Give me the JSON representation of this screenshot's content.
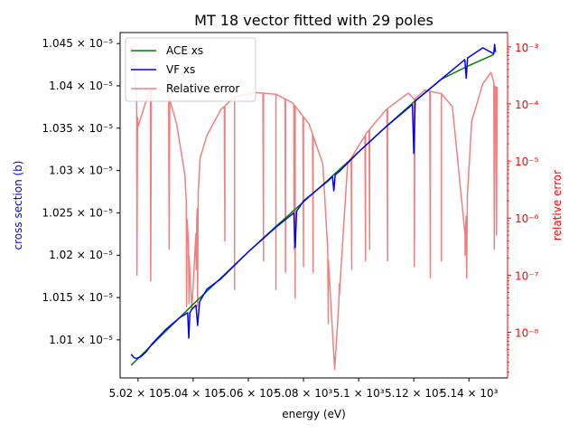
{
  "chart_data": {
    "type": "line",
    "title": "MT 18 vector fitted with 29 poles",
    "xlabel": "energy (eV)",
    "ylabel": "cross section (b)",
    "y2label": "relative error",
    "xlim": [
      5013.5,
      5154
    ],
    "ylim": [
      1.0055e-05,
      1.0463e-05
    ],
    "y2lim_log10": [
      -8.8,
      -2.75
    ],
    "y2scale": "log",
    "grid": false,
    "legend_position": "upper-left",
    "x_ticks": [
      {
        "value": 5020,
        "label": "5.02 × 10³"
      },
      {
        "value": 5040,
        "label": "5.04 × 10³"
      },
      {
        "value": 5060,
        "label": "5.06 × 10³"
      },
      {
        "value": 5080,
        "label": "5.08 × 10³"
      },
      {
        "value": 5100,
        "label": "5.1 × 10³"
      },
      {
        "value": 5120,
        "label": "5.12 × 10³"
      },
      {
        "value": 5140,
        "label": "5.14 × 10³"
      }
    ],
    "y_ticks": [
      {
        "value": 1.01e-05,
        "label": "1.01 × 10⁻⁵"
      },
      {
        "value": 1.015e-05,
        "label": "1.015 × 10⁻⁵"
      },
      {
        "value": 1.02e-05,
        "label": "1.02 × 10⁻⁵"
      },
      {
        "value": 1.025e-05,
        "label": "1.025 × 10⁻⁵"
      },
      {
        "value": 1.03e-05,
        "label": "1.03 × 10⁻⁵"
      },
      {
        "value": 1.035e-05,
        "label": "1.035 × 10⁻⁵"
      },
      {
        "value": 1.04e-05,
        "label": "1.04 × 10⁻⁵"
      },
      {
        "value": 1.045e-05,
        "label": "1.045 × 10⁻⁵"
      }
    ],
    "y2_ticks": [
      {
        "exp": -8,
        "label": "10⁻⁸"
      },
      {
        "exp": -7,
        "label": "10⁻⁷"
      },
      {
        "exp": -6,
        "label": "10⁻⁶"
      },
      {
        "exp": -5,
        "label": "10⁻⁵"
      },
      {
        "exp": -4,
        "label": "10⁻⁴"
      },
      {
        "exp": -3,
        "label": "10⁻³"
      }
    ],
    "series": [
      {
        "name": "ACE xs",
        "color": "#008000",
        "axis": "left",
        "x": [
          5017.5,
          5020,
          5030,
          5040,
          5050,
          5060,
          5070,
          5080,
          5090,
          5100,
          5110,
          5120,
          5130,
          5140,
          5149
        ],
        "y": [
          1.007e-05,
          1.0078e-05,
          1.011e-05,
          1.0142e-05,
          1.0173e-05,
          1.0204e-05,
          1.0234e-05,
          1.0263e-05,
          1.0292e-05,
          1.0322e-05,
          1.0352e-05,
          1.0381e-05,
          1.0408e-05,
          1.0424e-05,
          1.0437e-05
        ]
      },
      {
        "name": "VF xs",
        "color": "#0000ff",
        "axis": "left",
        "x": [
          5017.5,
          5018.5,
          5019.5,
          5021,
          5023,
          5025,
          5030,
          5035,
          5038,
          5038.4,
          5038.8,
          5039.5,
          5041,
          5041.6,
          5042.3,
          5045,
          5050,
          5060,
          5070,
          5076.5,
          5077,
          5077.5,
          5080,
          5089,
          5090.5,
          5091,
          5091.5,
          5093,
          5100,
          5110,
          5119.5,
          5120,
          5120.5,
          5130,
          5138.5,
          5139,
          5139.5,
          5145,
          5149,
          5149.3,
          5149.6
        ],
        "y": [
          1.0083e-05,
          1.0079e-05,
          1.0078e-05,
          1.008e-05,
          1.0086e-05,
          1.0095e-05,
          1.0112e-05,
          1.0126e-05,
          1.0132e-05,
          1.0102e-05,
          1.0132e-05,
          1.0136e-05,
          1.0141e-05,
          1.0117e-05,
          1.0145e-05,
          1.016e-05,
          1.0172e-05,
          1.0204e-05,
          1.0233e-05,
          1.025e-05,
          1.0209e-05,
          1.0252e-05,
          1.0264e-05,
          1.0288e-05,
          1.0293e-05,
          1.0276e-05,
          1.0295e-05,
          1.0299e-05,
          1.0322e-05,
          1.0352e-05,
          1.0378e-05,
          1.032e-05,
          1.0382e-05,
          1.0408e-05,
          1.0431e-05,
          1.0409e-05,
          1.0433e-05,
          1.0445e-05,
          1.0438e-05,
          1.0449e-05,
          1.044e-05
        ]
      },
      {
        "name": "Relative error",
        "color": "#f08080",
        "axis": "right",
        "log10_baseline_x": [
          5017.5,
          5019,
          5020,
          5024,
          5027,
          5031,
          5034,
          5037,
          5039.5,
          5042.5,
          5045,
          5050,
          5055,
          5062,
          5070,
          5076,
          5082,
          5087,
          5091.3,
          5096,
          5103,
          5110,
          5118,
          5120.2,
          5124,
          5130,
          5134,
          5138.6,
          5141,
          5145,
          5148,
          5149.5
        ],
        "log10_baseline_y": [
          -3.0,
          -3.5,
          -4.4,
          -3.78,
          -3.72,
          -3.84,
          -4.35,
          -5.25,
          -7.6,
          -4.95,
          -4.55,
          -4.1,
          -3.88,
          -3.8,
          -3.83,
          -3.98,
          -4.35,
          -5.05,
          -8.65,
          -5.05,
          -4.5,
          -4.1,
          -3.81,
          -3.92,
          -3.76,
          -3.82,
          -4.05,
          -6.3,
          -4.3,
          -3.65,
          -3.45,
          -3.7
        ],
        "spike_x": [
          5019.6,
          5024.6,
          5031.3,
          5037.6,
          5038.5,
          5041.1,
          5041.6,
          5051.5,
          5055.0,
          5065.5,
          5070.0,
          5073.5,
          5076.6,
          5077.0,
          5080.0,
          5083.5,
          5089.0,
          5090.7,
          5093.0,
          5097.5,
          5102.5,
          5104.0,
          5110.5,
          5120.2,
          5126.0,
          5130.0,
          5138.6,
          5139.2,
          5149.2,
          5150.0
        ],
        "spike_depth_log10": [
          -7.0,
          -7.1,
          -6.55,
          -7.55,
          -7.5,
          -6.9,
          -7.55,
          -6.4,
          -7.25,
          -6.75,
          -7.25,
          -6.95,
          -6.55,
          -7.4,
          -6.85,
          -6.95,
          -7.85,
          -8.15,
          -7.15,
          -6.9,
          -6.75,
          -6.55,
          -6.75,
          -6.85,
          -7.05,
          -6.75,
          -6.65,
          -7.05,
          -6.55,
          -6.3
        ]
      }
    ]
  }
}
